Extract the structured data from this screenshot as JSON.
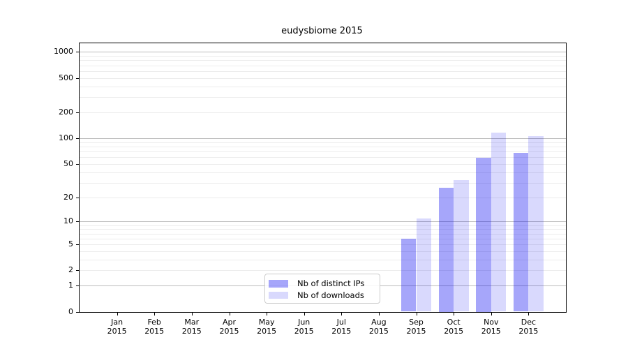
{
  "chart_data": {
    "type": "bar",
    "title": "eudysbiome 2015",
    "categories": [
      {
        "month": "Jan",
        "year": "2015"
      },
      {
        "month": "Feb",
        "year": "2015"
      },
      {
        "month": "Mar",
        "year": "2015"
      },
      {
        "month": "Apr",
        "year": "2015"
      },
      {
        "month": "May",
        "year": "2015"
      },
      {
        "month": "Jun",
        "year": "2015"
      },
      {
        "month": "Jul",
        "year": "2015"
      },
      {
        "month": "Aug",
        "year": "2015"
      },
      {
        "month": "Sep",
        "year": "2015"
      },
      {
        "month": "Oct",
        "year": "2015"
      },
      {
        "month": "Nov",
        "year": "2015"
      },
      {
        "month": "Dec",
        "year": "2015"
      }
    ],
    "series": [
      {
        "name": "Nb of distinct IPs",
        "slug": "distinct-ips",
        "color": "rgba(0,0,240,0.35)",
        "color_hex_on_white": "#a6a6fa",
        "values": [
          0,
          0,
          0,
          0,
          0,
          0,
          0,
          0,
          6,
          26,
          59,
          67
        ]
      },
      {
        "name": "Nb of downloads",
        "slug": "downloads",
        "color": "rgba(0,0,240,0.15)",
        "color_hex_on_white": "#d9d9fd",
        "values": [
          0,
          0,
          0,
          0,
          0,
          0,
          0,
          0,
          11,
          32,
          117,
          105
        ]
      }
    ],
    "y_axis": {
      "scale": "log10(value+1)",
      "ticks": [
        {
          "value": 0,
          "label": "0"
        },
        {
          "value": 1,
          "label": "1"
        },
        {
          "value": 2,
          "label": "2"
        },
        {
          "value": 5,
          "label": "5"
        },
        {
          "value": 10,
          "label": "10"
        },
        {
          "value": 20,
          "label": "20"
        },
        {
          "value": 50,
          "label": "50"
        },
        {
          "value": 100,
          "label": "100"
        },
        {
          "value": 200,
          "label": "200"
        },
        {
          "value": 500,
          "label": "500"
        },
        {
          "value": 1000,
          "label": "1000"
        }
      ],
      "max_value": 1200
    },
    "grid": {
      "major_values": [
        1,
        10,
        100,
        1000
      ],
      "minor_values": [
        2,
        3,
        4,
        5,
        6,
        7,
        8,
        9,
        20,
        30,
        40,
        50,
        60,
        70,
        80,
        90,
        200,
        300,
        400,
        500,
        600,
        700,
        800,
        900
      ]
    },
    "legend": {
      "position": "bottom-center",
      "entries": [
        "Nb of distinct IPs",
        "Nb of downloads"
      ]
    },
    "colors": {
      "grid_major": "#bdbdbd",
      "grid_minor": "#ececec",
      "axis": "#000000",
      "legend_border": "#cccccc",
      "text": "#000000"
    }
  }
}
